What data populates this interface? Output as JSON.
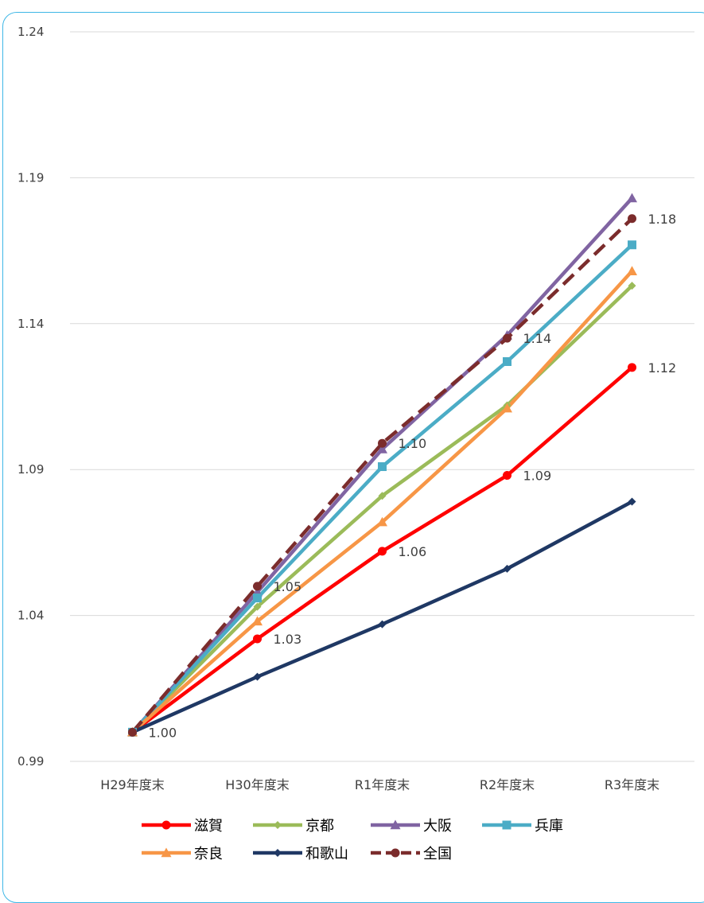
{
  "chart_data": {
    "type": "line",
    "title": "",
    "xlabel": "",
    "ylabel": "",
    "categories": [
      "H29年度末",
      "H30年度末",
      "R1年度末",
      "R2年度末",
      "R3年度末"
    ],
    "ylim": [
      0.99,
      1.24
    ],
    "yticks": [
      "0.99",
      "1.04",
      "1.09",
      "1.14",
      "1.19",
      "1.24"
    ],
    "grid": true,
    "legend_position": "bottom",
    "series": [
      {
        "name": "滋賀",
        "color": "#ff0000",
        "marker": "circle",
        "dash": false,
        "values": [
          1.0,
          1.032,
          1.062,
          1.088,
          1.125
        ]
      },
      {
        "name": "京都",
        "color": "#9bbb59",
        "marker": "diamond",
        "dash": false,
        "values": [
          1.0,
          1.043,
          1.081,
          1.112,
          1.153
        ]
      },
      {
        "name": "大阪",
        "color": "#8064a2",
        "marker": "triangle",
        "dash": false,
        "values": [
          1.0,
          1.048,
          1.097,
          1.136,
          1.183
        ]
      },
      {
        "name": "兵庫",
        "color": "#4bacc6",
        "marker": "square",
        "dash": false,
        "values": [
          1.0,
          1.046,
          1.091,
          1.127,
          1.167
        ]
      },
      {
        "name": "奈良",
        "color": "#f79646",
        "marker": "triangle",
        "dash": false,
        "values": [
          1.0,
          1.038,
          1.072,
          1.111,
          1.158
        ]
      },
      {
        "name": "和歌山",
        "color": "#1f3864",
        "marker": "diamond",
        "dash": false,
        "values": [
          1.0,
          1.019,
          1.037,
          1.056,
          1.079
        ]
      },
      {
        "name": "全国",
        "color": "#7b2c2c",
        "marker": "circle",
        "dash": true,
        "values": [
          1.0,
          1.05,
          1.099,
          1.135,
          1.176
        ]
      }
    ],
    "data_labels": [
      {
        "series": "滋賀",
        "index": 1,
        "text": "1.03"
      },
      {
        "series": "滋賀",
        "index": 2,
        "text": "1.06"
      },
      {
        "series": "滋賀",
        "index": 3,
        "text": "1.09"
      },
      {
        "series": "滋賀",
        "index": 4,
        "text": "1.12"
      },
      {
        "series": "全国",
        "index": 0,
        "text": "1.00"
      },
      {
        "series": "全国",
        "index": 1,
        "text": "1.05"
      },
      {
        "series": "全国",
        "index": 2,
        "text": "1.10"
      },
      {
        "series": "全国",
        "index": 3,
        "text": "1.14"
      },
      {
        "series": "全国",
        "index": 4,
        "text": "1.18"
      }
    ]
  }
}
